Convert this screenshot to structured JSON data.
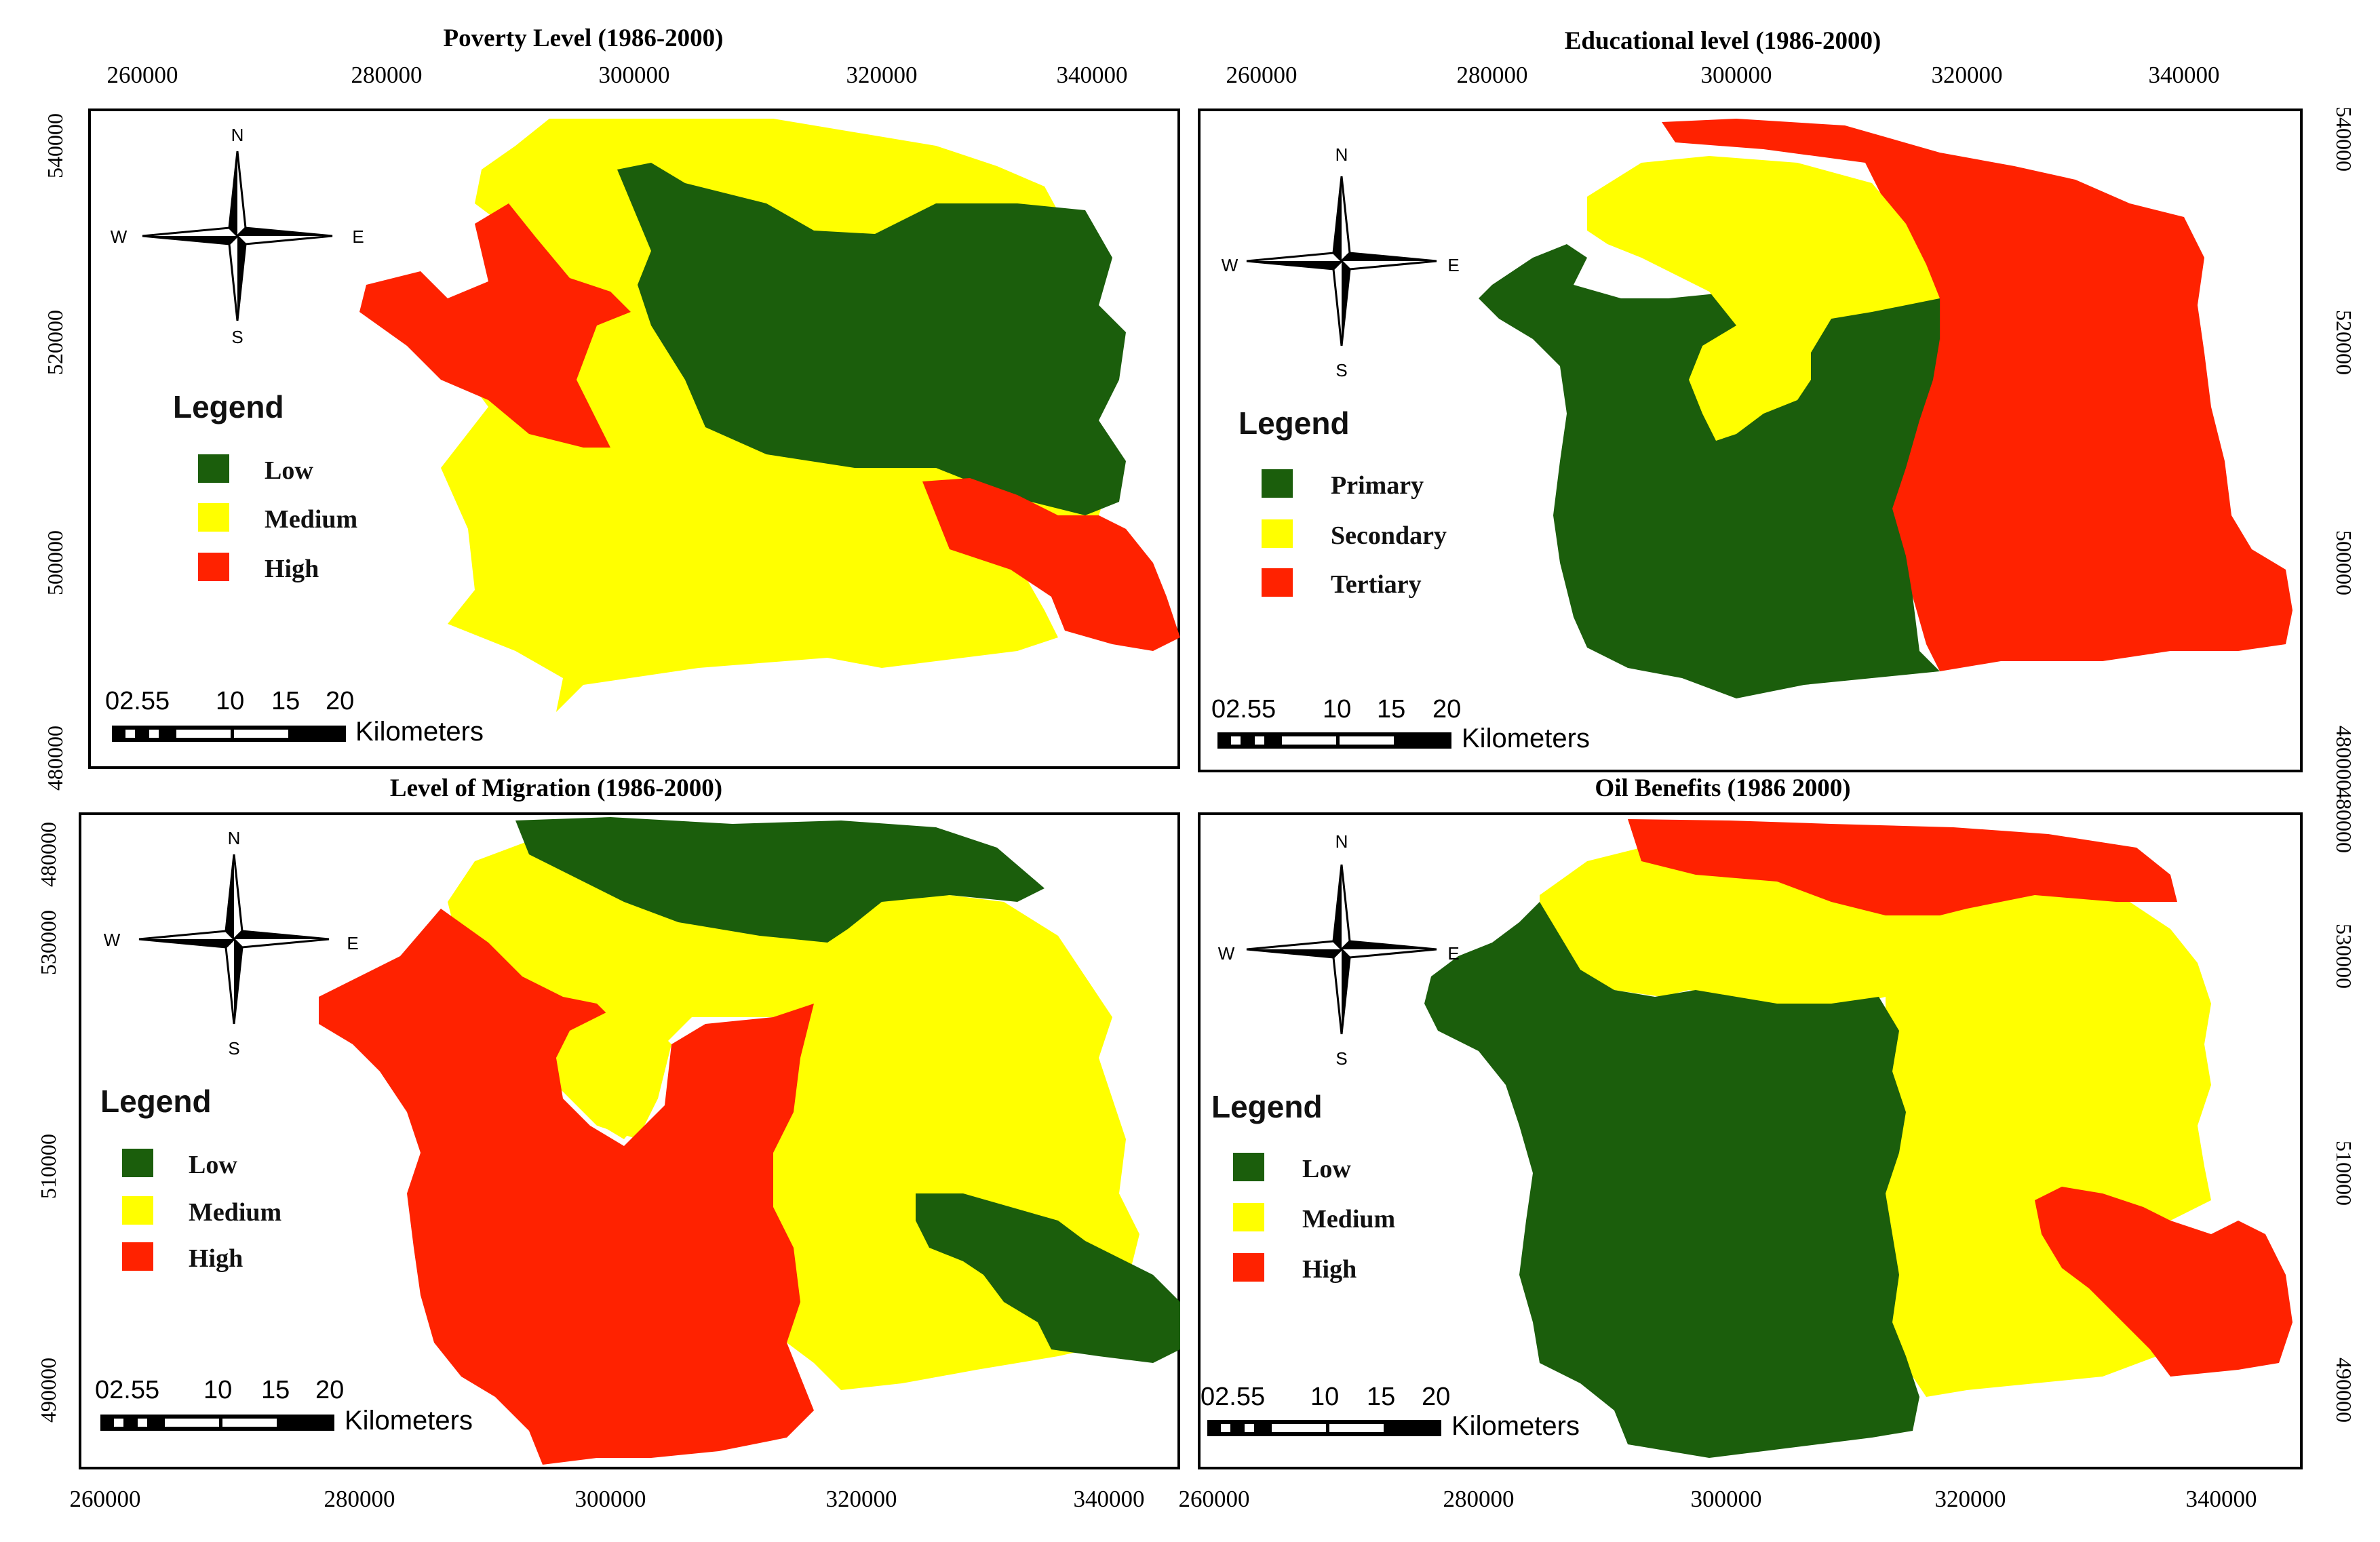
{
  "colors": {
    "low": "#1b5e0c",
    "medium": "#ffff00",
    "high": "#ff2200",
    "frame": "#000000"
  },
  "shared": {
    "x_ticks": [
      "260000",
      "280000",
      "300000",
      "320000",
      "340000"
    ],
    "y_ticks_top": [
      "540000",
      "520000",
      "500000",
      "480000"
    ],
    "y_ticks_bottom": [
      "530000",
      "510000",
      "490000"
    ],
    "legend_title": "Legend",
    "scale_numbers": [
      "02.55",
      "10",
      "15",
      "20"
    ],
    "scale_unit": "Kilometers",
    "compass": {
      "n": "N",
      "s": "S",
      "e": "E",
      "w": "W"
    }
  },
  "panels": [
    {
      "title": "Poverty Level (1986-2000)",
      "legend": [
        {
          "label": "Low",
          "class": "low"
        },
        {
          "label": "Medium",
          "class": "medium"
        },
        {
          "label": "High",
          "class": "high"
        }
      ]
    },
    {
      "title": "Educational level  (1986-2000)",
      "legend": [
        {
          "label": "Primary",
          "class": "low"
        },
        {
          "label": "Secondary",
          "class": "medium"
        },
        {
          "label": "Tertiary",
          "class": "high"
        }
      ]
    },
    {
      "title": "Level of Migration  (1986-2000)",
      "legend": [
        {
          "label": "Low",
          "class": "low"
        },
        {
          "label": "Medium",
          "class": "medium"
        },
        {
          "label": "High",
          "class": "high"
        }
      ]
    },
    {
      "title": "Oil Benefits  (1986 2000)",
      "legend": [
        {
          "label": "Low",
          "class": "low"
        },
        {
          "label": "Medium",
          "class": "medium"
        },
        {
          "label": "High",
          "class": "high"
        }
      ]
    }
  ]
}
